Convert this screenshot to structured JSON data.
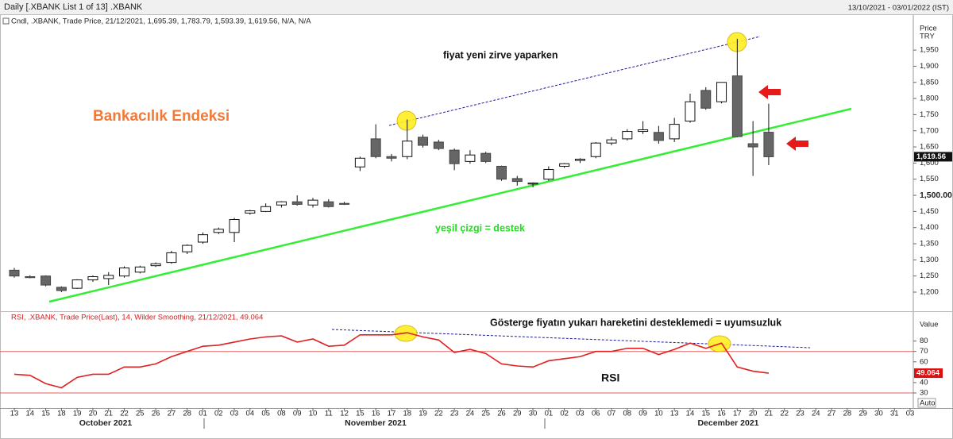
{
  "chart_data": [
    {
      "type": "candlestick",
      "title": "Daily [.XBANK List 1 of 13] .XBANK",
      "subtitle": "13/10/2021 - 03/01/2022 (IST)",
      "legend": "Cndl, .XBANK, Trade Price, 21/12/2021, 1,695.39, 1,783.79, 1,593.39, 1,619.56, N/A, N/A",
      "axis_label": [
        "Price",
        "TRY"
      ],
      "annotations": [
        "Bankacılık Endeksi",
        "fiyat yeni zirve yaparken",
        "yeşil çizgi = destek"
      ],
      "ylim": [
        1141,
        2056
      ],
      "yticks": [
        {
          "value": 1200,
          "label": "1,200"
        },
        {
          "value": 1250,
          "label": "1,250"
        },
        {
          "value": 1300,
          "label": "1,300"
        },
        {
          "value": 1350,
          "label": "1,350"
        },
        {
          "value": 1400,
          "label": "1,400"
        },
        {
          "value": 1450,
          "label": "1,450"
        },
        {
          "value": 1500,
          "label": "1,500.00"
        },
        {
          "value": 1550,
          "label": "1,550"
        },
        {
          "value": 1600,
          "label": "1,600"
        },
        {
          "value": 1650,
          "label": "1,650"
        },
        {
          "value": 1700,
          "label": "1,700"
        },
        {
          "value": 1750,
          "label": "1,750"
        },
        {
          "value": 1800,
          "label": "1,800"
        },
        {
          "value": 1850,
          "label": "1,850"
        },
        {
          "value": 1900,
          "label": "1,900"
        },
        {
          "value": 1950,
          "label": "1,950"
        }
      ],
      "up_color": "#ffffff",
      "down_color": "#666666",
      "open": [
        1268,
        1248,
        1250,
        1215,
        1212,
        1238,
        1242,
        1250,
        1262,
        1282,
        1292,
        1325,
        1355,
        1385,
        1385,
        1445,
        1450,
        1470,
        1480,
        1470,
        1480,
        1475,
        1588,
        1675,
        1620,
        1620,
        1680,
        1665,
        1640,
        1605,
        1630,
        1590,
        1552,
        1535,
        1550,
        1590,
        1608,
        1620,
        1662,
        1675,
        1698,
        1695,
        1675,
        1730,
        1825,
        1790,
        1870,
        1660,
        1695.39,
        null,
        null,
        null,
        null,
        null,
        null,
        null,
        null,
        null
      ],
      "high": [
        1275,
        1252,
        1252,
        1218,
        1240,
        1252,
        1262,
        1280,
        1282,
        1292,
        1328,
        1348,
        1385,
        1400,
        1430,
        1455,
        1475,
        1482,
        1500,
        1492,
        1488,
        1480,
        1620,
        1720,
        1628,
        1735,
        1688,
        1672,
        1645,
        1640,
        1635,
        1592,
        1560,
        1540,
        1590,
        1600,
        1615,
        1665,
        1680,
        1705,
        1730,
        1715,
        1740,
        1815,
        1835,
        1850,
        1985,
        1730,
        1783.79,
        null,
        null,
        null,
        null,
        null,
        null,
        null,
        null,
        null
      ],
      "low": [
        1245,
        1243,
        1218,
        1200,
        1210,
        1232,
        1222,
        1245,
        1258,
        1278,
        1288,
        1318,
        1350,
        1380,
        1355,
        1440,
        1448,
        1462,
        1468,
        1462,
        1462,
        1470,
        1575,
        1615,
        1605,
        1612,
        1648,
        1640,
        1578,
        1598,
        1600,
        1545,
        1530,
        1525,
        1545,
        1585,
        1600,
        1615,
        1655,
        1670,
        1690,
        1660,
        1665,
        1725,
        1765,
        1785,
        1680,
        1560,
        1593.39,
        null,
        null,
        null,
        null,
        null,
        null,
        null,
        null,
        null
      ],
      "close": [
        1250,
        1245,
        1222,
        1205,
        1238,
        1248,
        1252,
        1275,
        1278,
        1288,
        1322,
        1345,
        1378,
        1395,
        1425,
        1452,
        1465,
        1480,
        1472,
        1485,
        1465,
        1472,
        1615,
        1620,
        1615,
        1668,
        1655,
        1645,
        1598,
        1625,
        1605,
        1550,
        1543,
        1538,
        1580,
        1598,
        1612,
        1662,
        1672,
        1698,
        1703,
        1670,
        1720,
        1790,
        1770,
        1850,
        1682,
        1650,
        1619.56,
        null,
        null,
        null,
        null,
        null,
        null,
        null,
        null,
        null
      ],
      "last_label": "1,619.56"
    },
    {
      "type": "line",
      "legend": "RSI, .XBANK, Trade Price(Last),  14, Wilder Smoothing, 21/12/2021, 49.064",
      "axis_label": [
        "Value",
        "Auto"
      ],
      "annotations": [
        "Gösterge fiyatın yukarı hareketini desteklemedi = uyumsuzluk",
        "RSI"
      ],
      "months": [
        "October 2021",
        "November 2021",
        "December 2021"
      ],
      "categories": [
        "13",
        "14",
        "15",
        "18",
        "19",
        "20",
        "21",
        "22",
        "25",
        "26",
        "27",
        "28",
        "01",
        "02",
        "03",
        "04",
        "05",
        "08",
        "09",
        "10",
        "11",
        "12",
        "15",
        "16",
        "17",
        "18",
        "19",
        "22",
        "23",
        "24",
        "25",
        "26",
        "29",
        "30",
        "01",
        "02",
        "03",
        "06",
        "07",
        "08",
        "09",
        "10",
        "13",
        "14",
        "15",
        "16",
        "17",
        "20",
        "21",
        "22",
        "23",
        "24",
        "27",
        "28",
        "29",
        "30",
        "31",
        "03"
      ],
      "ylim": [
        17,
        108
      ],
      "yticks": [
        30,
        40,
        60,
        70,
        80
      ],
      "levels": [
        70,
        30
      ],
      "color": "#e02020",
      "values": [
        48,
        47,
        39,
        35,
        45,
        48,
        48,
        55,
        55,
        58,
        65,
        70,
        75,
        76,
        79,
        82,
        84,
        85,
        79,
        82,
        75,
        76,
        86,
        86,
        86,
        88,
        84,
        81,
        69,
        72,
        68,
        58,
        56,
        55,
        61,
        63,
        65,
        70,
        70,
        73,
        73,
        67,
        72,
        78,
        73,
        78,
        55,
        51,
        49.064,
        null,
        null,
        null,
        null,
        null,
        null,
        null,
        null,
        null
      ],
      "last_label": "49.064"
    }
  ]
}
